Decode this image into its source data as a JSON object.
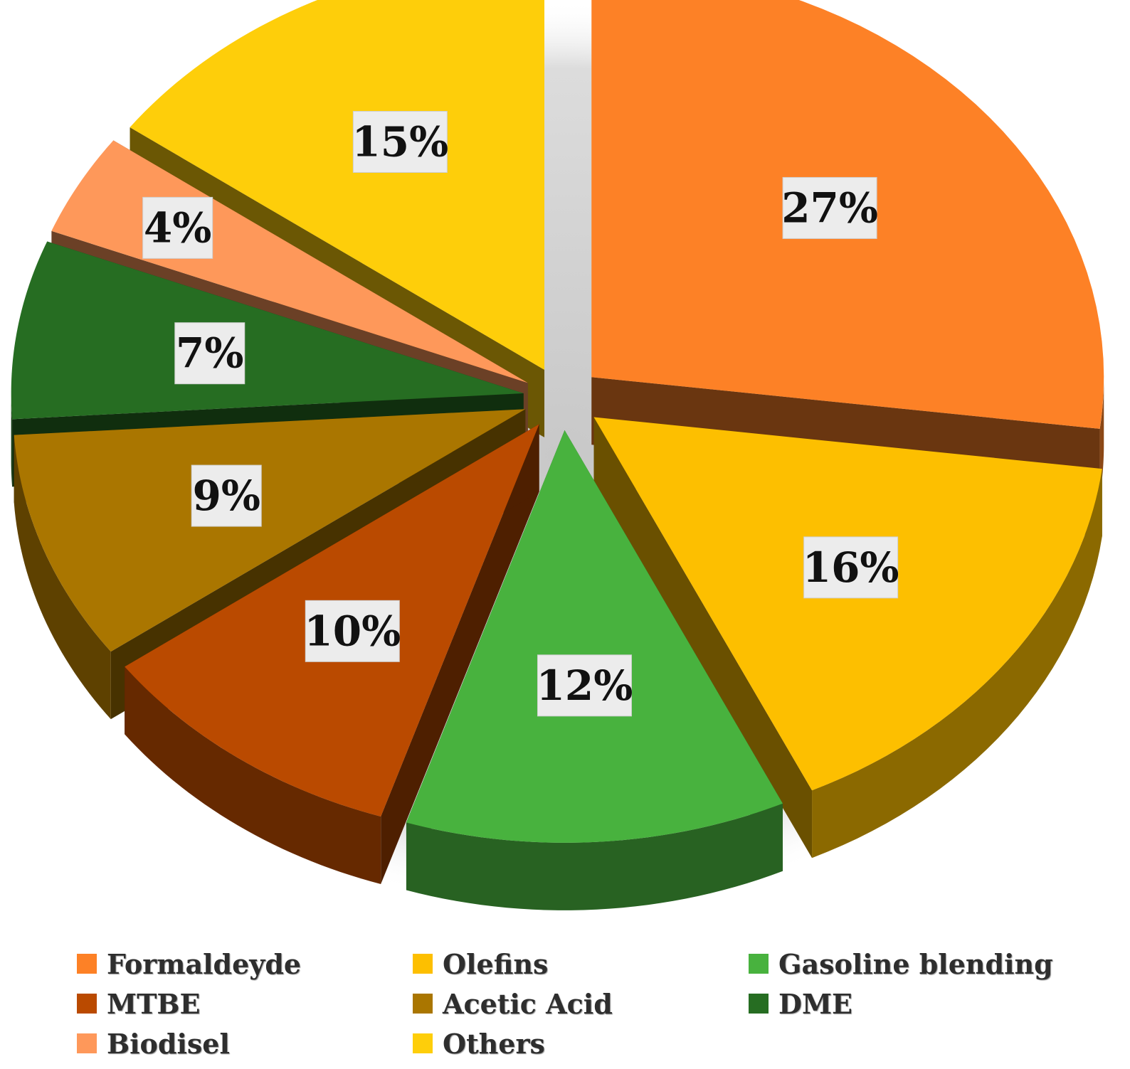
{
  "chart_data": {
    "type": "pie",
    "categories": [
      "Formaldeyde",
      "Olefins",
      "Gasoline blending",
      "MTBE",
      "Acetic Acid",
      "DME",
      "Biodisel",
      "Others"
    ],
    "values": [
      27,
      16,
      12,
      10,
      9,
      7,
      4,
      15
    ],
    "labels": [
      "27%",
      "16%",
      "12%",
      "10%",
      "9%",
      "7%",
      "4%",
      "15%"
    ],
    "colors": [
      "#fd8126",
      "#fdbf00",
      "#48b23e",
      "#ba4a00",
      "#aa7600",
      "#266d22",
      "#fe985a",
      "#fece0a"
    ],
    "style": "3D exploded pie",
    "legend_position": "bottom"
  },
  "legend": {
    "items": [
      {
        "label": "Formaldeyde",
        "color": "#fd8126"
      },
      {
        "label": "Olefins",
        "color": "#fdbf00"
      },
      {
        "label": "Gasoline blending",
        "color": "#48b23e"
      },
      {
        "label": "MTBE",
        "color": "#ba4a00"
      },
      {
        "label": "Acetic Acid",
        "color": "#aa7600"
      },
      {
        "label": "DME",
        "color": "#266d22"
      },
      {
        "label": "Biodisel",
        "color": "#fe985a"
      },
      {
        "label": "Others",
        "color": "#fece0a"
      }
    ]
  }
}
